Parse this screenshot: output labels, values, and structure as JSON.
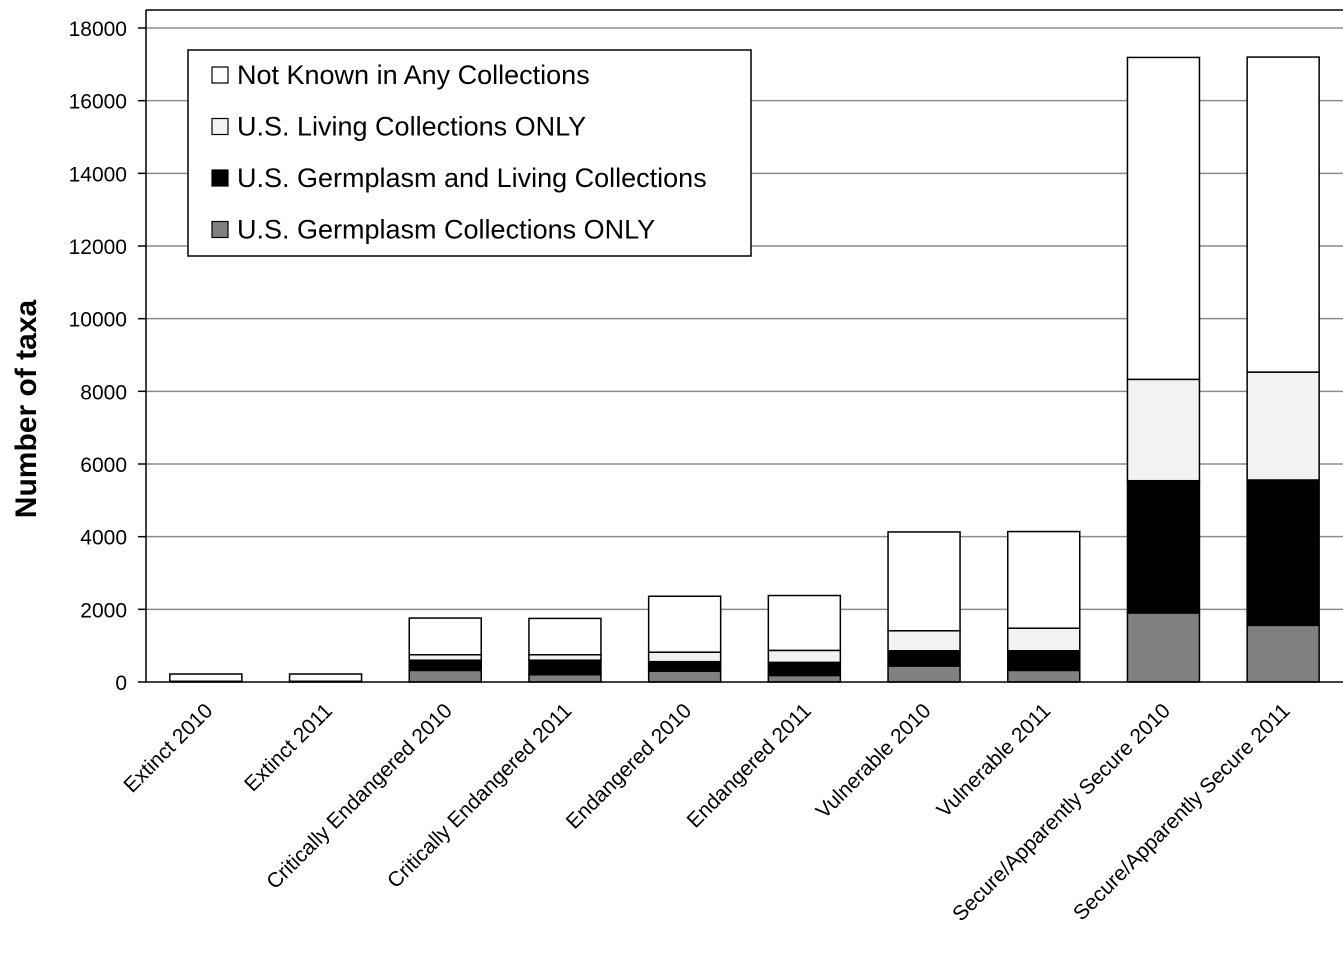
{
  "chart_data": {
    "type": "bar",
    "stacked": true,
    "ylabel": "Number of taxa",
    "xlabel": "",
    "ylim": [
      0,
      18000
    ],
    "y_ticks": [
      0,
      2000,
      4000,
      6000,
      8000,
      10000,
      12000,
      14000,
      16000,
      18000
    ],
    "grid": true,
    "legend_position": "top-left",
    "categories": [
      "Extinct 2010",
      "Extinct 2011",
      "Critically Endangered 2010",
      "Critically Endangered 2011",
      "Endangered 2010",
      "Endangered 2011",
      "Vulnerable 2010",
      "Vulnerable 2011",
      "Secure/Apparently Secure 2010",
      "Secure/Apparently Secure 2011"
    ],
    "series": [
      {
        "name": "U.S. Germplasm Collections ONLY",
        "color": "#808080",
        "values": [
          0,
          0,
          320,
          200,
          300,
          180,
          440,
          320,
          1900,
          1560
        ]
      },
      {
        "name": "U.S. Germplasm and Living Collections",
        "color": "#000000",
        "values": [
          0,
          0,
          280,
          400,
          260,
          360,
          420,
          540,
          3640,
          4000
        ]
      },
      {
        "name": "U.S. Living Collections ONLY",
        "color": "#f2f2f2",
        "values": [
          20,
          20,
          150,
          150,
          260,
          330,
          550,
          620,
          2790,
          2970
        ]
      },
      {
        "name": "Not Known in Any Collections",
        "color": "#ffffff",
        "values": [
          200,
          200,
          1010,
          1000,
          1540,
          1510,
          2720,
          2660,
          8860,
          8670
        ]
      }
    ],
    "legend_order": [
      "Not Known in Any Collections",
      "U.S. Living Collections ONLY",
      "U.S. Germplasm and Living Collections",
      "U.S. Germplasm Collections ONLY"
    ]
  }
}
